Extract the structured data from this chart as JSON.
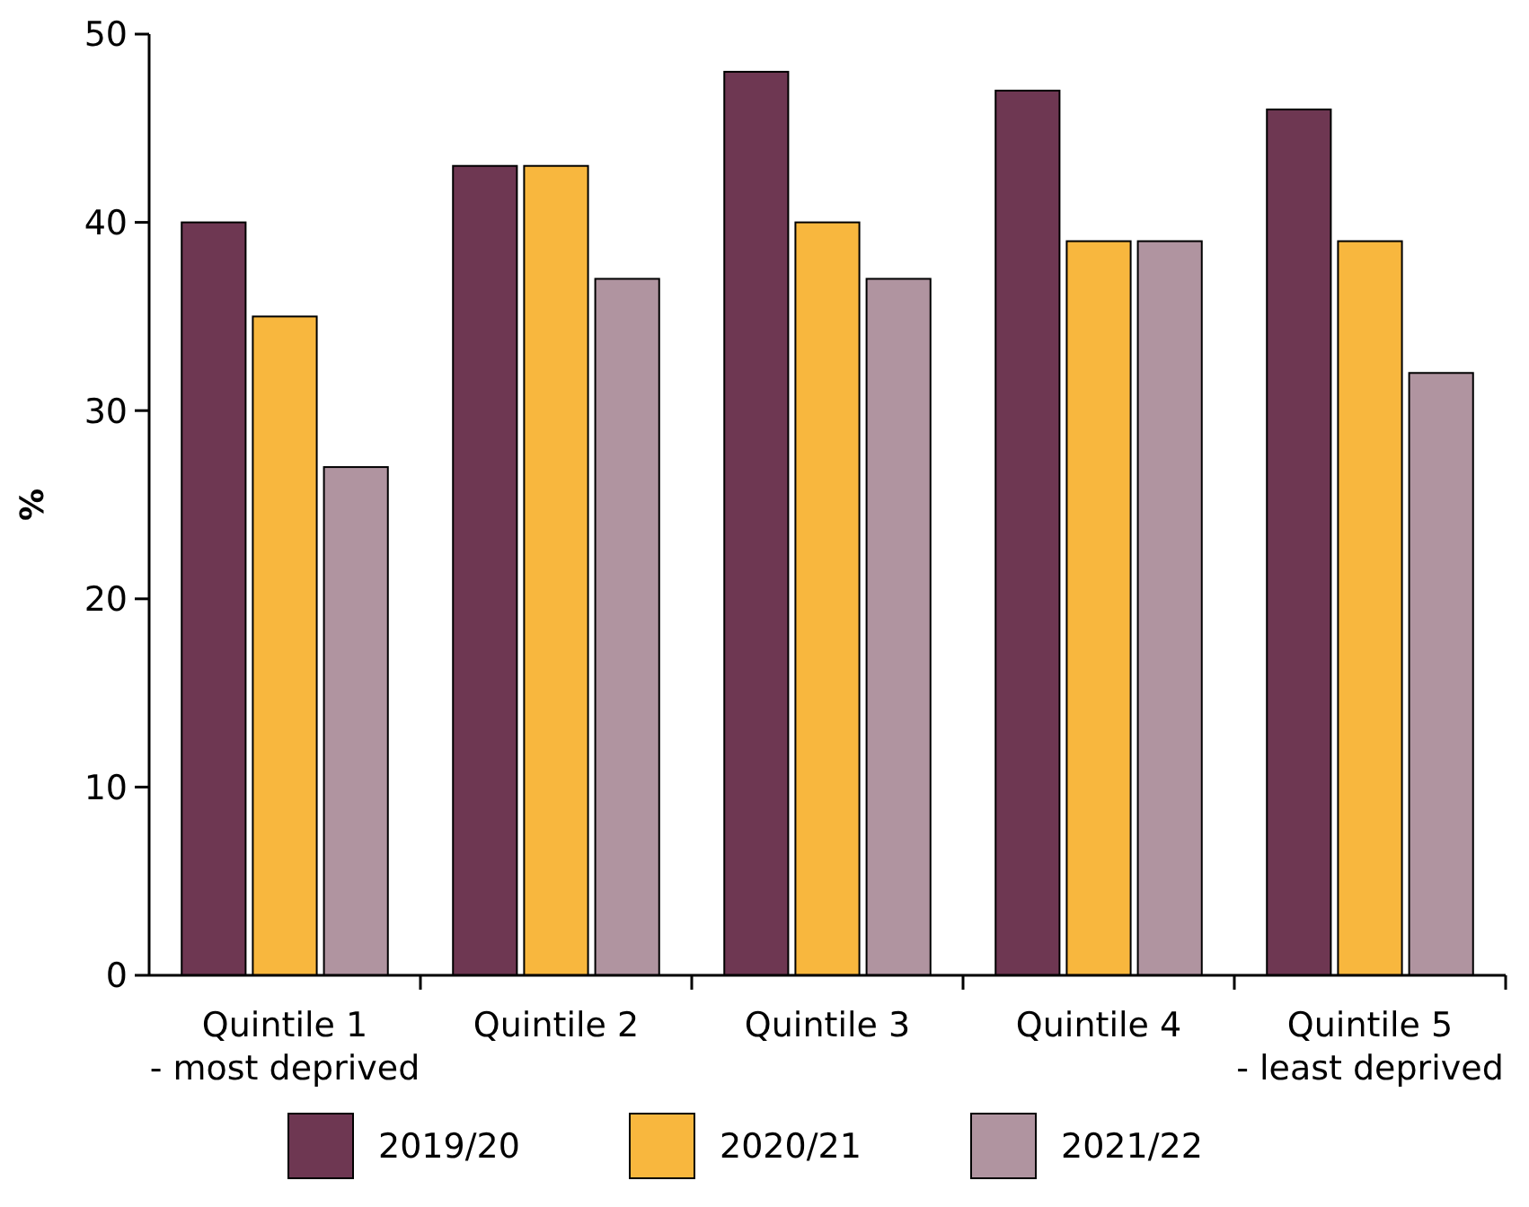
{
  "chart_data": {
    "type": "bar",
    "ylabel": "%",
    "categories": [
      "Quintile 1\n- most deprived",
      "Quintile 2",
      "Quintile 3",
      "Quintile 4",
      "Quintile 5\n- least deprived"
    ],
    "series": [
      {
        "name": "2019/20",
        "color": "#6e3752",
        "values": [
          40,
          43,
          48,
          47,
          46
        ]
      },
      {
        "name": "2020/21",
        "color": "#f8b73e",
        "values": [
          35,
          43,
          40,
          39,
          39
        ]
      },
      {
        "name": "2021/22",
        "color": "#b094a0",
        "values": [
          27,
          37,
          37,
          39,
          32
        ]
      }
    ],
    "ylim": [
      0,
      50
    ],
    "yticks": [
      0,
      10,
      20,
      30,
      40,
      50
    ],
    "grid": false,
    "legend": "bottom"
  }
}
